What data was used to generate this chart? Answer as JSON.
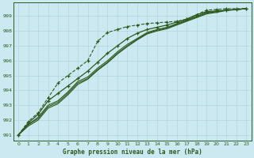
{
  "title": "Graphe pression niveau de la mer (hPa)",
  "bg_color": "#cce8f0",
  "grid_color": "#b8d8e0",
  "line_color": "#2d5a1e",
  "xlim": [
    -0.5,
    23.5
  ],
  "ylim": [
    990.6,
    999.9
  ],
  "yticks": [
    991,
    992,
    993,
    994,
    995,
    996,
    997,
    998,
    999
  ],
  "xticks": [
    0,
    1,
    2,
    3,
    4,
    5,
    6,
    7,
    8,
    9,
    10,
    11,
    12,
    13,
    14,
    15,
    16,
    17,
    18,
    19,
    20,
    21,
    22,
    23
  ],
  "series_dotted": [
    991.0,
    991.9,
    992.5,
    993.5,
    994.5,
    995.0,
    995.5,
    996.0,
    997.3,
    997.9,
    998.1,
    998.3,
    998.4,
    998.5,
    998.55,
    998.6,
    998.65,
    998.8,
    999.1,
    999.4,
    999.45,
    999.5,
    999.5,
    999.5
  ],
  "series1": [
    991.0,
    991.8,
    992.4,
    993.3,
    993.8,
    994.3,
    994.8,
    995.3,
    995.9,
    996.5,
    997.0,
    997.5,
    997.85,
    998.1,
    998.25,
    998.4,
    998.6,
    998.8,
    999.1,
    999.3,
    999.35,
    999.4,
    999.45,
    999.5
  ],
  "series2": [
    991.0,
    991.7,
    992.2,
    993.0,
    993.3,
    993.9,
    994.6,
    994.9,
    995.5,
    996.0,
    996.6,
    997.1,
    997.5,
    997.9,
    998.1,
    998.25,
    998.5,
    998.75,
    999.0,
    999.25,
    999.3,
    999.4,
    999.45,
    999.5
  ],
  "series3": [
    991.0,
    991.7,
    992.1,
    992.9,
    993.2,
    993.8,
    994.5,
    994.8,
    995.4,
    995.9,
    996.5,
    997.0,
    997.45,
    997.85,
    998.05,
    998.2,
    998.45,
    998.7,
    998.95,
    999.2,
    999.3,
    999.4,
    999.45,
    999.5
  ],
  "series4": [
    991.0,
    991.6,
    992.0,
    992.8,
    993.1,
    993.7,
    994.4,
    994.75,
    995.35,
    995.85,
    996.45,
    996.95,
    997.4,
    997.8,
    998.0,
    998.15,
    998.4,
    998.65,
    998.9,
    999.15,
    999.25,
    999.38,
    999.43,
    999.5
  ]
}
